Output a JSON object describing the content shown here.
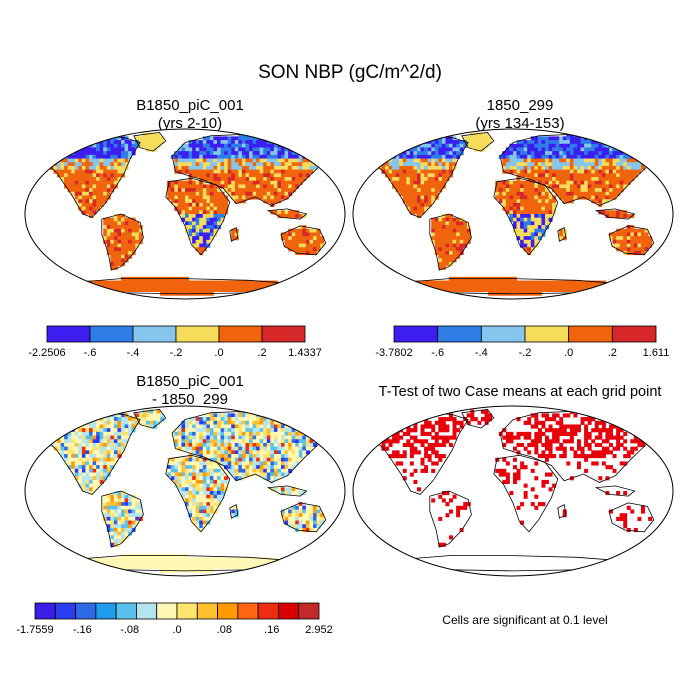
{
  "title": "SON NBP (gC/m^2/d)",
  "panels": {
    "case1": {
      "title": "B1850_piC_001",
      "subtitle": "(yrs 2-10)"
    },
    "case2": {
      "title": "1850_299",
      "subtitle": "(yrs 134-153)"
    },
    "diff": {
      "title": "B1850_piC_001",
      "subtitle": "- 1850_299"
    },
    "ttest": {
      "title": "T-Test of two Case means at each grid point",
      "note": "Cells are significant at 0.1 level"
    }
  },
  "colorbars": {
    "case1": {
      "colors": [
        "#3d1ef0",
        "#2f7de6",
        "#86c6ec",
        "#f5dc5a",
        "#f0640e",
        "#d62828"
      ],
      "labels": [
        "-2.2506",
        "-.6",
        "-.4",
        "-.2",
        ".0",
        ".2",
        "1.4337"
      ]
    },
    "case2": {
      "colors": [
        "#3d1ef0",
        "#2f7de6",
        "#86c6ec",
        "#f5dc5a",
        "#f0640e",
        "#d62828"
      ],
      "labels": [
        "-3.7802",
        "-.6",
        "-.4",
        "-.2",
        ".0",
        ".2",
        "1.611"
      ]
    },
    "diff": {
      "colors": [
        "#3a1ee8",
        "#2a3cf0",
        "#2f6ae6",
        "#1e9bea",
        "#5cc0ee",
        "#b4e4ee",
        "#fff8b4",
        "#ffe470",
        "#ffc030",
        "#ff9a00",
        "#ff6410",
        "#f02c10",
        "#d80000",
        "#c42828"
      ],
      "labels": [
        "-1.7559",
        "-.16",
        "-.08",
        ".0",
        ".08",
        ".16",
        "2.952"
      ]
    }
  },
  "chart_data": [
    {
      "type": "heatmap",
      "title": "B1850_piC_001 (yrs 2-10)",
      "colorbar_min": -2.2506,
      "colorbar_max": 1.4337,
      "levels": [
        -0.6,
        -0.4,
        -0.2,
        0.0,
        0.2
      ]
    },
    {
      "type": "heatmap",
      "title": "1850_299 (yrs 134-153)",
      "colorbar_min": -3.7802,
      "colorbar_max": 1.611,
      "levels": [
        -0.6,
        -0.4,
        -0.2,
        0.0,
        0.2
      ]
    },
    {
      "type": "heatmap",
      "title": "B1850_piC_001 - 1850_299",
      "colorbar_min": -1.7559,
      "colorbar_max": 2.952,
      "levels": [
        -0.16,
        -0.08,
        0.0,
        0.08,
        0.16
      ]
    },
    {
      "type": "heatmap",
      "title": "T-Test of two Case means at each grid point",
      "significance_level": 0.1
    }
  ]
}
